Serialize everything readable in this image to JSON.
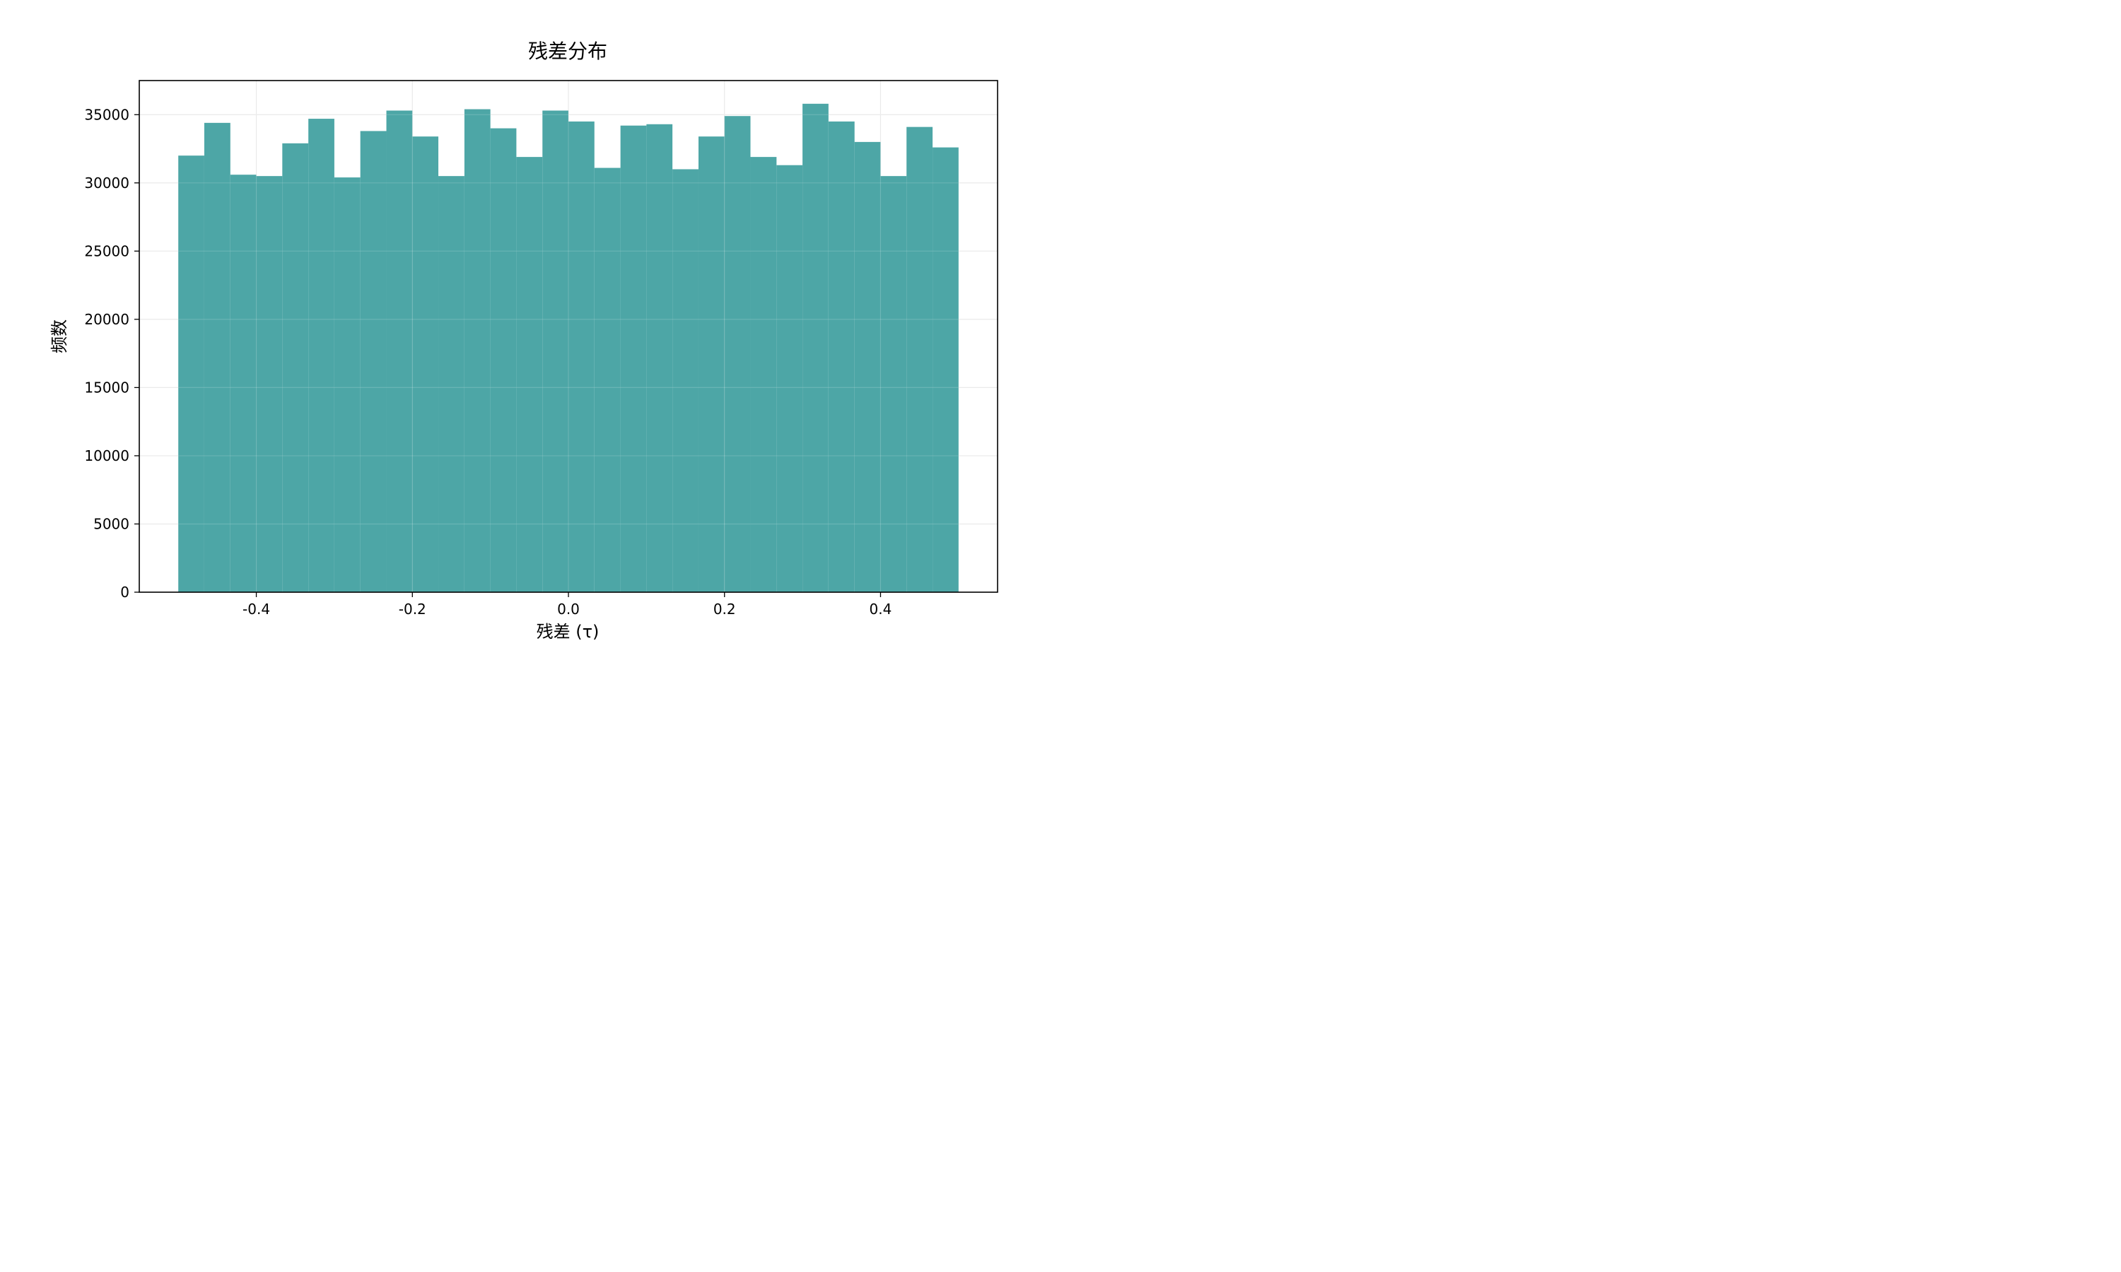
{
  "chart_data": {
    "type": "bar",
    "title": "残差分布",
    "xlabel": "残差 (τ)",
    "ylabel": "频数",
    "xlim": [
      -0.55,
      0.55
    ],
    "ylim": [
      0,
      37500
    ],
    "grid": true,
    "bar_color": "#4DA6A6",
    "bins": [
      {
        "x0": -0.5,
        "x1": -0.4667,
        "value": 32000
      },
      {
        "x0": -0.4667,
        "x1": -0.4333,
        "value": 34400
      },
      {
        "x0": -0.4333,
        "x1": -0.4,
        "value": 30600
      },
      {
        "x0": -0.4,
        "x1": -0.3667,
        "value": 30500
      },
      {
        "x0": -0.3667,
        "x1": -0.3333,
        "value": 32900
      },
      {
        "x0": -0.3333,
        "x1": -0.3,
        "value": 34700
      },
      {
        "x0": -0.3,
        "x1": -0.2667,
        "value": 30400
      },
      {
        "x0": -0.2667,
        "x1": -0.2333,
        "value": 33800
      },
      {
        "x0": -0.2333,
        "x1": -0.2,
        "value": 35300
      },
      {
        "x0": -0.2,
        "x1": -0.1667,
        "value": 33400
      },
      {
        "x0": -0.1667,
        "x1": -0.1333,
        "value": 30500
      },
      {
        "x0": -0.1333,
        "x1": -0.1,
        "value": 35400
      },
      {
        "x0": -0.1,
        "x1": -0.0667,
        "value": 34000
      },
      {
        "x0": -0.0667,
        "x1": -0.0333,
        "value": 31900
      },
      {
        "x0": -0.0333,
        "x1": 0.0,
        "value": 35300
      },
      {
        "x0": 0.0,
        "x1": 0.0333,
        "value": 34500
      },
      {
        "x0": 0.0333,
        "x1": 0.0667,
        "value": 31100
      },
      {
        "x0": 0.0667,
        "x1": 0.1,
        "value": 34200
      },
      {
        "x0": 0.1,
        "x1": 0.1333,
        "value": 34300
      },
      {
        "x0": 0.1333,
        "x1": 0.1667,
        "value": 31000
      },
      {
        "x0": 0.1667,
        "x1": 0.2,
        "value": 33400
      },
      {
        "x0": 0.2,
        "x1": 0.2333,
        "value": 34900
      },
      {
        "x0": 0.2333,
        "x1": 0.2667,
        "value": 31900
      },
      {
        "x0": 0.2667,
        "x1": 0.3,
        "value": 31300
      },
      {
        "x0": 0.3,
        "x1": 0.3333,
        "value": 35800
      },
      {
        "x0": 0.3333,
        "x1": 0.3667,
        "value": 34500
      },
      {
        "x0": 0.3667,
        "x1": 0.4,
        "value": 33000
      },
      {
        "x0": 0.4,
        "x1": 0.4333,
        "value": 30500
      },
      {
        "x0": 0.4333,
        "x1": 0.4667,
        "value": 34100
      },
      {
        "x0": 0.4667,
        "x1": 0.5,
        "value": 32600
      }
    ],
    "x_ticks": [
      -0.4,
      -0.2,
      0.0,
      0.2,
      0.4
    ],
    "x_tick_labels": [
      "-0.4",
      "-0.2",
      "0.0",
      "0.2",
      "0.4"
    ],
    "y_ticks": [
      0,
      5000,
      10000,
      15000,
      20000,
      25000,
      30000,
      35000
    ],
    "y_tick_labels": [
      "0",
      "5000",
      "10000",
      "15000",
      "20000",
      "25000",
      "30000",
      "35000"
    ]
  }
}
